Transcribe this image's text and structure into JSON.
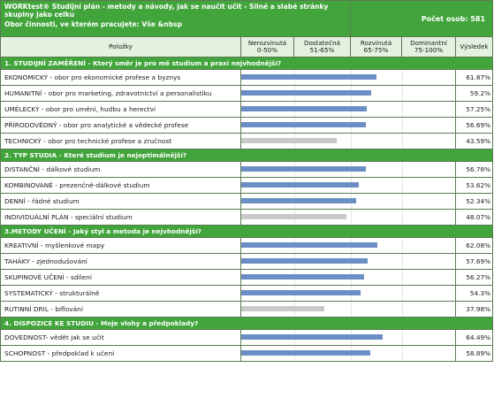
{
  "header": {
    "title": "WORKtest®   Studijní plán - metody a návody, jak se naučit učit - Silné a slabé stránky skupiny jako celku",
    "filter": "Obor činnosti, ve kterém pracujete: Vše &nbsp",
    "count": "Počet osob: 581"
  },
  "columns": {
    "items": "Položky",
    "c1": "Nerozvinutá\n0-50%",
    "c2": "Dostatečná\n51-65%",
    "c3": "Rozvinutá\n65-75%",
    "c4": "Dominantní\n75-100%",
    "result": "Výsledek"
  },
  "sections": [
    {
      "title": "1. STUDIJNÍ ZAMĚŘENÍ - Který směr je pro mě studium a praxi nejvhodnější?",
      "rows": [
        {
          "label": "EKONOMICKÝ - obor pro ekonomické profese a byznys",
          "value": 61.87,
          "display": "61.87%",
          "color": "#6b8fc4"
        },
        {
          "label": "HUMANITNÍ - obor pro marketing, zdravotnictví a personalistiku",
          "value": 59.2,
          "display": "59.2%",
          "color": "#6b8fc4"
        },
        {
          "label": "UMĚLECKÝ - obor pro umění, hudbu a herectví",
          "value": 57.25,
          "display": "57.25%",
          "color": "#6b8fc4"
        },
        {
          "label": "PŘÍRODOVĚDNÝ - obor pro analytické a vědecké profese",
          "value": 56.69,
          "display": "56.69%",
          "color": "#6b8fc4"
        },
        {
          "label": "TECHNICKÝ - obor pro technické profese a zručnost",
          "value": 43.59,
          "display": "43.59%",
          "color": "#c9c9c9"
        }
      ]
    },
    {
      "title": "2. TYP STUDIA - Které studium je nejoptimálnější?",
      "rows": [
        {
          "label": "DISTANČNÍ - dálkové studium",
          "value": 56.78,
          "display": "56.78%",
          "color": "#6b8fc4"
        },
        {
          "label": "KOMBINOVANÉ - prezenčně-dálkové studium",
          "value": 53.62,
          "display": "53.62%",
          "color": "#6b8fc4"
        },
        {
          "label": "DENNÍ - řádné studium",
          "value": 52.34,
          "display": "52.34%",
          "color": "#6b8fc4"
        },
        {
          "label": "INDIVIDUÁLNÍ PLÁN - speciální studium",
          "value": 48.07,
          "display": "48.07%",
          "color": "#c9c9c9"
        }
      ]
    },
    {
      "title": "3.METODY UČENÍ - Jaký styl a metoda je nejvhodnější?",
      "rows": [
        {
          "label": "KREATIVNÍ - myšlenkové mapy",
          "value": 62.08,
          "display": "62.08%",
          "color": "#6b8fc4"
        },
        {
          "label": "TAHÁKY - zjednodušování",
          "value": 57.69,
          "display": "57.69%",
          "color": "#6b8fc4"
        },
        {
          "label": "SKUPINOVÉ UČENÍ - sdílení",
          "value": 56.27,
          "display": "56.27%",
          "color": "#6b8fc4"
        },
        {
          "label": "SYSTEMATICKÝ - strukturálně",
          "value": 54.3,
          "display": "54.3%",
          "color": "#6b8fc4"
        },
        {
          "label": "RUTINNÍ DRIL - biflování",
          "value": 37.98,
          "display": "37.98%",
          "color": "#c9c9c9"
        }
      ]
    },
    {
      "title": "4. DISPOZICE KE STUDIU - Moje vlohy a předpoklady?",
      "rows": [
        {
          "label": "DOVEDNOST- vědět jak se učit",
          "value": 64.49,
          "display": "64.49%",
          "color": "#6b8fc4"
        },
        {
          "label": "SCHOPNOST - předpoklad k učení",
          "value": 58.89,
          "display": "58.89%",
          "color": "#6b8fc4"
        }
      ]
    }
  ]
}
